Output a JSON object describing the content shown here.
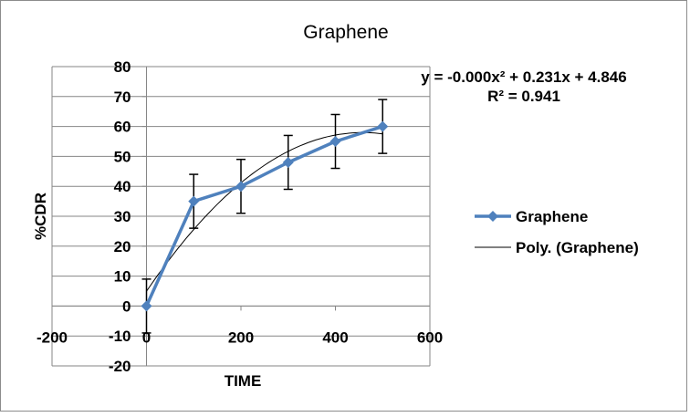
{
  "chart_data": {
    "type": "line",
    "title": "Graphene",
    "xlabel": "TIME",
    "ylabel": "%CDR",
    "xlim": [
      -200,
      600
    ],
    "ylim": [
      -20,
      80
    ],
    "xticks": [
      -200,
      0,
      200,
      400,
      600
    ],
    "yticks": [
      -20,
      -10,
      0,
      10,
      20,
      30,
      40,
      50,
      60,
      70,
      80
    ],
    "grid": "horizontal",
    "legend_position": "right",
    "series": [
      {
        "name": "Graphene",
        "color": "#4f81bd",
        "marker": "diamond",
        "x": [
          0,
          100,
          200,
          300,
          400,
          500
        ],
        "y": [
          0,
          35,
          40,
          48,
          55,
          60
        ],
        "error": [
          9,
          9,
          9,
          9,
          9,
          9
        ]
      }
    ],
    "trendline": {
      "name": "Poly. (Graphene)",
      "type": "polynomial",
      "order": 2,
      "color": "#000000",
      "equation": "y = -0.000x² + 0.231x + 4.846",
      "r_squared": "R² = 0.941"
    }
  }
}
